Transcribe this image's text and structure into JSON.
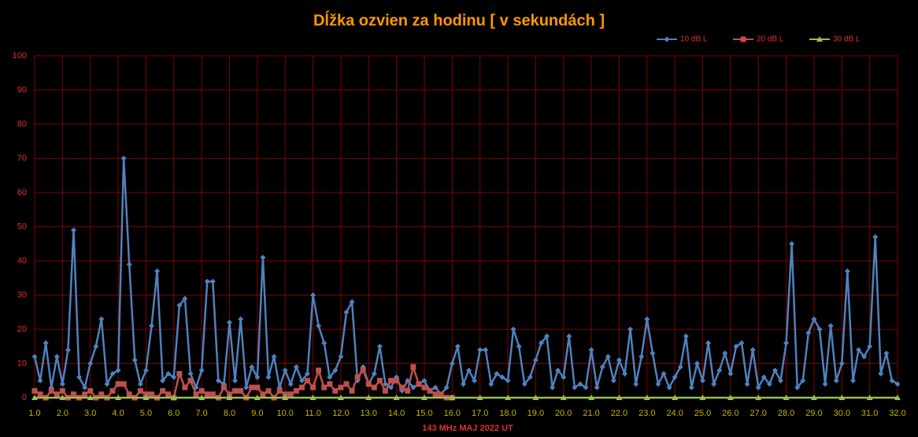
{
  "chart_data": {
    "type": "line",
    "title": "Dĺžka ozvien za hodinu [ v sekundách ]",
    "xlabel": "143 MHz MAJ  2022  UT",
    "xlim": [
      1,
      32
    ],
    "ylim": [
      0,
      100
    ],
    "xticks": [
      {
        "value": 1,
        "label": "1.0"
      },
      {
        "value": 2,
        "label": "2.0"
      },
      {
        "value": 3,
        "label": "3.0"
      },
      {
        "value": 4,
        "label": "4.0"
      },
      {
        "value": 5,
        "label": "5.0"
      },
      {
        "value": 6,
        "label": "6.0"
      },
      {
        "value": 7,
        "label": "7.0"
      },
      {
        "value": 8,
        "label": "8.0"
      },
      {
        "value": 9,
        "label": "9.0"
      },
      {
        "value": 10,
        "label": "10.0"
      },
      {
        "value": 11,
        "label": "11.0"
      },
      {
        "value": 12,
        "label": "12.0"
      },
      {
        "value": 13,
        "label": "13.0"
      },
      {
        "value": 14,
        "label": "14.0"
      },
      {
        "value": 15,
        "label": "15.0"
      },
      {
        "value": 16,
        "label": "16.0"
      },
      {
        "value": 17,
        "label": "17.0"
      },
      {
        "value": 18,
        "label": "18.0"
      },
      {
        "value": 19,
        "label": "19.0"
      },
      {
        "value": 20,
        "label": "20.0"
      },
      {
        "value": 21,
        "label": "21.0"
      },
      {
        "value": 22,
        "label": "22.0"
      },
      {
        "value": 23,
        "label": "23.0"
      },
      {
        "value": 24,
        "label": "24.0"
      },
      {
        "value": 25,
        "label": "25.0"
      },
      {
        "value": 26,
        "label": "26.0"
      },
      {
        "value": 27,
        "label": "27.0"
      },
      {
        "value": 28,
        "label": "28.0"
      },
      {
        "value": 29,
        "label": "29.0"
      },
      {
        "value": 30,
        "label": "30.0"
      },
      {
        "value": 31,
        "label": "31.0"
      },
      {
        "value": 32,
        "label": "32.0"
      }
    ],
    "yticks": [
      0,
      10,
      20,
      30,
      40,
      50,
      60,
      70,
      80,
      90,
      100
    ],
    "grid": true,
    "legend": "top-right",
    "series": [
      {
        "name": "10 dB L",
        "color": "#4f81bd",
        "marker": "diamond",
        "x": [
          1.0,
          1.2,
          1.4,
          1.6,
          1.8,
          2.0,
          2.2,
          2.4,
          2.6,
          2.8,
          3.0,
          3.2,
          3.4,
          3.6,
          3.8,
          4.0,
          4.2,
          4.4,
          4.6,
          4.8,
          5.0,
          5.2,
          5.4,
          5.6,
          5.8,
          6.0,
          6.2,
          6.4,
          6.6,
          6.8,
          7.0,
          7.2,
          7.4,
          7.6,
          7.8,
          8.0,
          8.2,
          8.4,
          8.6,
          8.8,
          9.0,
          9.2,
          9.4,
          9.6,
          9.8,
          10.0,
          10.2,
          10.4,
          10.6,
          10.8,
          11.0,
          11.2,
          11.4,
          11.6,
          11.8,
          12.0,
          12.2,
          12.4,
          12.6,
          12.8,
          13.0,
          13.2,
          13.4,
          13.6,
          13.8,
          14.0,
          14.2,
          14.4,
          14.6,
          14.8,
          15.0,
          15.2,
          15.4,
          15.6,
          15.8,
          16.0,
          16.2,
          16.4,
          16.6,
          16.8,
          17.0,
          17.2,
          17.4,
          17.6,
          17.8,
          18.0,
          18.2,
          18.4,
          18.6,
          18.8,
          19.0,
          19.2,
          19.4,
          19.6,
          19.8,
          20.0,
          20.2,
          20.4,
          20.6,
          20.8,
          21.0,
          21.2,
          21.4,
          21.6,
          21.8,
          22.0,
          22.2,
          22.4,
          22.6,
          22.8,
          23.0,
          23.2,
          23.4,
          23.6,
          23.8,
          24.0,
          24.2,
          24.4,
          24.6,
          24.8,
          25.0,
          25.2,
          25.4,
          25.6,
          25.8,
          26.0,
          26.2,
          26.4,
          26.6,
          26.8,
          27.0,
          27.2,
          27.4,
          27.6,
          27.8,
          28.0,
          28.2,
          28.4,
          28.6,
          28.8,
          29.0,
          29.2,
          29.4,
          29.6,
          29.8,
          30.0,
          30.2,
          30.4,
          30.6,
          30.8,
          31.0,
          31.2,
          31.4,
          31.6,
          31.8,
          32.0
        ],
        "values": [
          12,
          5,
          16,
          3,
          12,
          4,
          14,
          49,
          6,
          3,
          10,
          15,
          23,
          4,
          7,
          8,
          70,
          39,
          11,
          4,
          8,
          21,
          37,
          5,
          7,
          6,
          27,
          29,
          7,
          3,
          8,
          34,
          34,
          5,
          4,
          22,
          5,
          23,
          3,
          9,
          6,
          41,
          6,
          12,
          3,
          8,
          4,
          9,
          5,
          7,
          30,
          21,
          16,
          6,
          8,
          12,
          25,
          28,
          5,
          9,
          4,
          7,
          15,
          4,
          3,
          6,
          2,
          5,
          3,
          4,
          5,
          2,
          3,
          1,
          3,
          10,
          15,
          4,
          8,
          5,
          14,
          14,
          4,
          7,
          6,
          5,
          20,
          15,
          4,
          6,
          11,
          16,
          18,
          3,
          8,
          6,
          18,
          3,
          4,
          3,
          14,
          3,
          9,
          12,
          5,
          11,
          7,
          20,
          4,
          12,
          23,
          13,
          4,
          7,
          3,
          6,
          9,
          18,
          3,
          10,
          5,
          16,
          4,
          8,
          13,
          7,
          15,
          16,
          4,
          14,
          3,
          6,
          4,
          8,
          5,
          16,
          45,
          3,
          5,
          19,
          23,
          20,
          4,
          21,
          5,
          10,
          37,
          5,
          14,
          12,
          15,
          47,
          7,
          13,
          5,
          4
        ]
      },
      {
        "name": "20 dB L",
        "color": "#c0504d",
        "marker": "square",
        "x": [
          1.0,
          1.2,
          1.4,
          1.6,
          1.8,
          2.0,
          2.2,
          2.4,
          2.6,
          2.8,
          3.0,
          3.2,
          3.4,
          3.6,
          3.8,
          4.0,
          4.2,
          4.4,
          4.6,
          4.8,
          5.0,
          5.2,
          5.4,
          5.6,
          5.8,
          6.0,
          6.2,
          6.4,
          6.6,
          6.8,
          7.0,
          7.2,
          7.4,
          7.6,
          7.8,
          8.0,
          8.2,
          8.4,
          8.6,
          8.8,
          9.0,
          9.2,
          9.4,
          9.6,
          9.8,
          10.0,
          10.2,
          10.4,
          10.6,
          10.8,
          11.0,
          11.2,
          11.4,
          11.6,
          11.8,
          12.0,
          12.2,
          12.4,
          12.6,
          12.8,
          13.0,
          13.2,
          13.4,
          13.6,
          13.8,
          14.0,
          14.2,
          14.4,
          14.6,
          14.8,
          15.0,
          15.2,
          15.4,
          15.6,
          15.8,
          16.0
        ],
        "values": [
          2,
          1,
          0,
          2,
          1,
          2,
          0,
          1,
          0,
          1,
          2,
          0,
          1,
          0,
          2,
          4,
          4,
          1,
          0,
          2,
          1,
          1,
          0,
          2,
          1,
          0,
          7,
          3,
          5,
          1,
          2,
          1,
          1,
          0,
          3,
          1,
          2,
          2,
          0,
          3,
          3,
          1,
          2,
          0,
          2,
          1,
          1,
          2,
          3,
          5,
          3,
          8,
          3,
          4,
          2,
          3,
          4,
          2,
          6,
          8,
          4,
          3,
          5,
          2,
          5,
          5,
          3,
          2,
          9,
          4,
          3,
          2,
          1,
          1,
          0,
          0
        ]
      },
      {
        "name": "30 dB L",
        "color": "#9bbb59",
        "marker": "triangle",
        "x": [
          1,
          2,
          3,
          4,
          5,
          6,
          7,
          8,
          9,
          10,
          11,
          12,
          13,
          14,
          15,
          16,
          17,
          18,
          19,
          20,
          21,
          22,
          23,
          24,
          25,
          26,
          27,
          28,
          29,
          30,
          31,
          32
        ],
        "values": [
          0,
          0,
          0,
          0,
          0,
          0,
          0,
          0,
          0,
          0,
          0,
          0,
          0,
          0,
          0,
          0,
          0,
          0,
          0,
          0,
          0,
          0,
          0,
          0,
          0,
          0,
          0,
          0,
          0,
          0,
          0,
          0
        ]
      }
    ]
  }
}
